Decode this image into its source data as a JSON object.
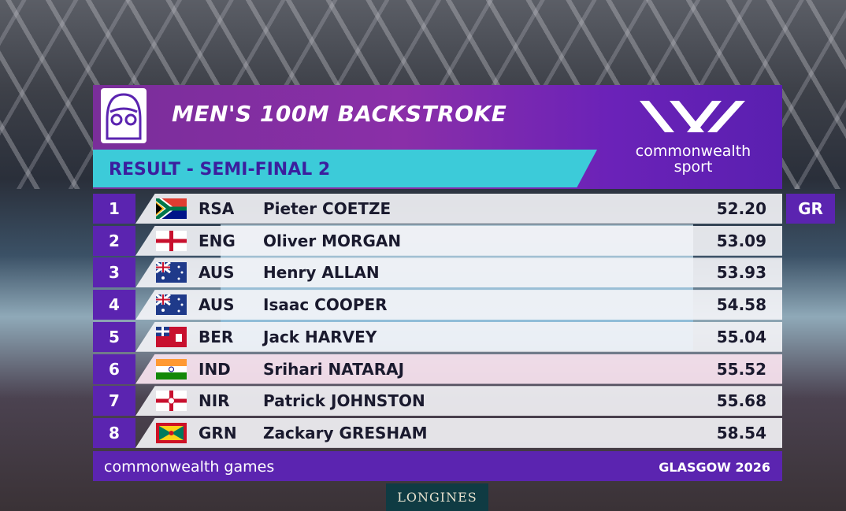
{
  "header": {
    "title": "MEN'S 100M BACKSTROKE",
    "subtitle": "RESULT - SEMI-FINAL 2",
    "brand": [
      "commonwealth",
      "sport"
    ]
  },
  "rows": [
    {
      "rank": 1,
      "country": "RSA",
      "name": "Pieter COETZE",
      "time": "52.20",
      "record": "GR"
    },
    {
      "rank": 2,
      "country": "ENG",
      "name": "Oliver MORGAN",
      "time": "53.09"
    },
    {
      "rank": 3,
      "country": "AUS",
      "name": "Henry ALLAN",
      "time": "53.93"
    },
    {
      "rank": 4,
      "country": "AUS",
      "name": "Isaac COOPER",
      "time": "54.58"
    },
    {
      "rank": 5,
      "country": "BER",
      "name": "Jack HARVEY",
      "time": "55.04"
    },
    {
      "rank": 6,
      "country": "IND",
      "name": "Srihari NATARAJ",
      "time": "55.52"
    },
    {
      "rank": 7,
      "country": "NIR",
      "name": "Patrick JOHNSTON",
      "time": "55.68"
    },
    {
      "rank": 8,
      "country": "GRN",
      "name": "Zackary GRESHAM",
      "time": "58.54"
    }
  ],
  "footer": {
    "left": "commonwealth games",
    "right": "GLASGOW 2026"
  },
  "sponsor": "LONGINES"
}
